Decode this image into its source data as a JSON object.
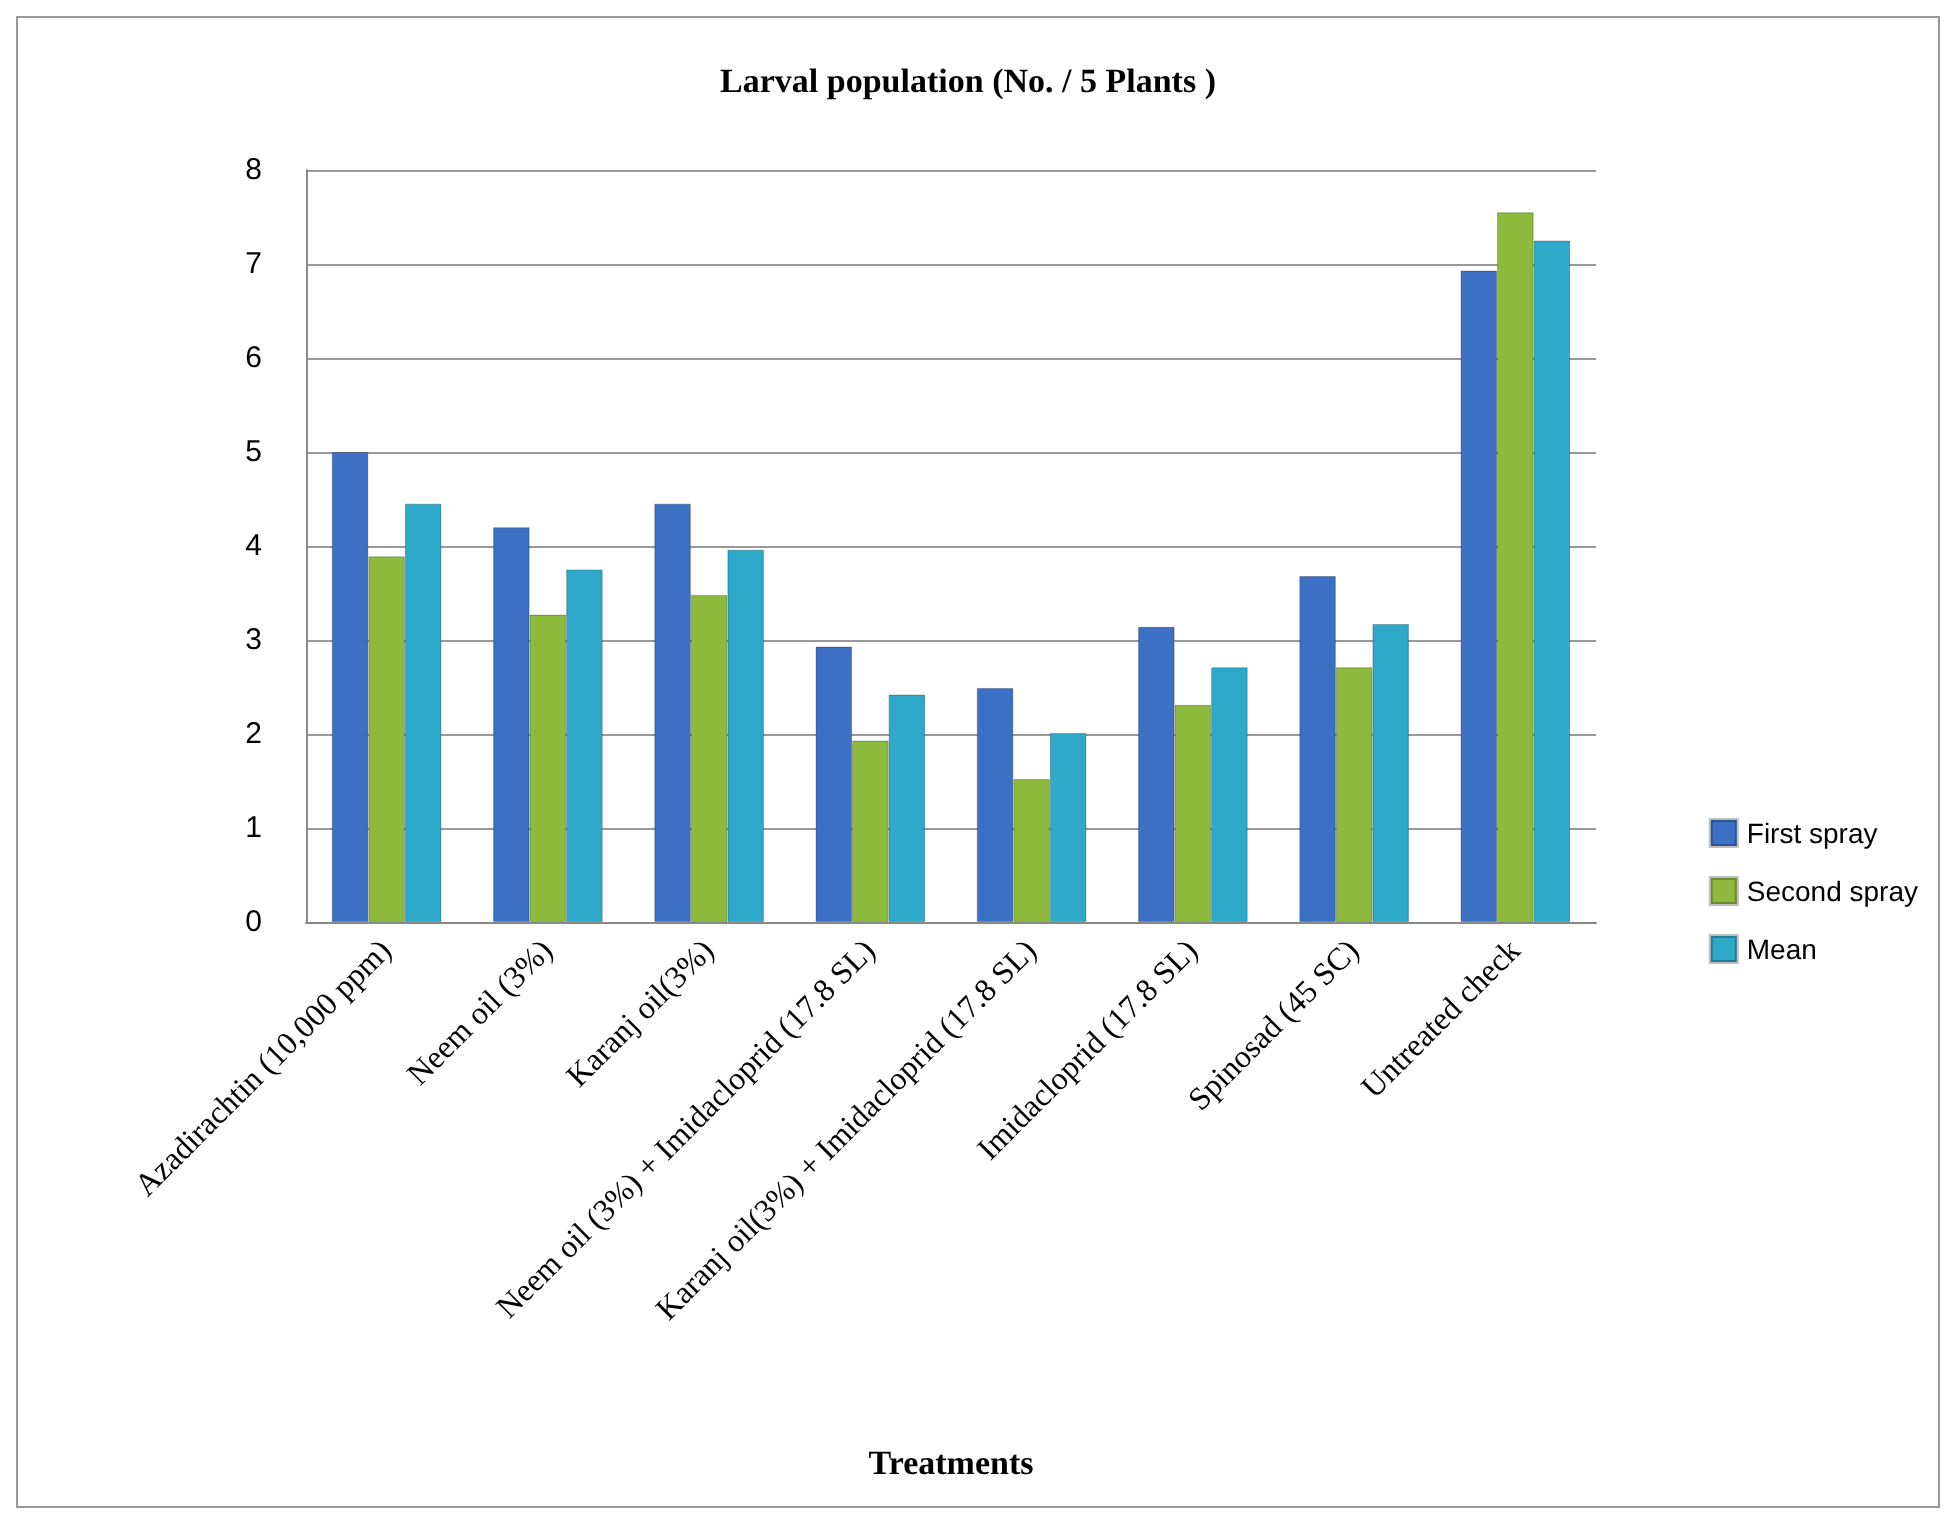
{
  "chart_data": {
    "type": "bar",
    "title": "Larval population (No. / 5 Plants )",
    "xlabel": "Treatments",
    "categories": [
      "Azadirachtin (10,000 ppm)",
      "Neem oil (3%)",
      "Karanj oil(3%)",
      "Neem oil (3%) + Imidacloprid (17.8 SL)",
      "Karanj oil(3%) + Imidacloprid (17.8 SL)",
      "Imidacloprid (17.8 SL)",
      "Spinosad (45 SC)",
      "Untreated check"
    ],
    "series": [
      {
        "name": "First spray",
        "color": "#3b70c4",
        "values": [
          5.0,
          4.2,
          4.45,
          2.93,
          2.49,
          3.14,
          3.68,
          6.93
        ]
      },
      {
        "name": "Second spray",
        "color": "#8dba3c",
        "values": [
          3.89,
          3.27,
          3.48,
          1.93,
          1.52,
          2.31,
          2.71,
          7.55
        ]
      },
      {
        "name": "Mean",
        "color": "#2ea9c9",
        "values": [
          4.45,
          3.75,
          3.96,
          2.42,
          2.01,
          2.71,
          3.17,
          7.25
        ]
      }
    ],
    "ylim": [
      0,
      8
    ],
    "yticks": [
      0,
      1,
      2,
      3,
      4,
      5,
      6,
      7,
      8
    ],
    "grid": "y",
    "legend": "right"
  }
}
